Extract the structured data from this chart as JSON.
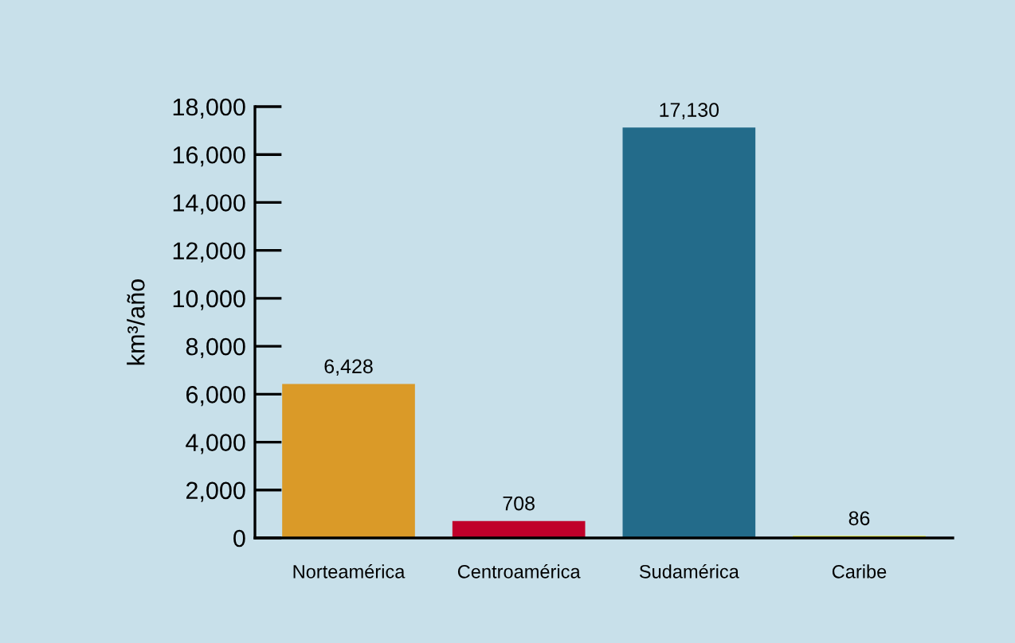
{
  "chart_data": {
    "type": "bar",
    "ylabel": "km³/año",
    "categories": [
      "Norteamérica",
      "Centroamérica",
      "Sudamérica",
      "Caribe"
    ],
    "values": [
      6428,
      708,
      17130,
      86
    ],
    "colors": [
      "#da9a28",
      "#c0002a",
      "#236b8a",
      "#f5f012"
    ],
    "value_labels": [
      "6,428",
      "708",
      "17,130",
      "86"
    ],
    "ylim": [
      0,
      18000
    ],
    "yticks": [
      {
        "value": 0,
        "label": "0"
      },
      {
        "value": 2000,
        "label": "2,000"
      },
      {
        "value": 4000,
        "label": "4,000"
      },
      {
        "value": 6000,
        "label": "6,000"
      },
      {
        "value": 8000,
        "label": "8,000"
      },
      {
        "value": 10000,
        "label": "10,000"
      },
      {
        "value": 12000,
        "label": "12,000"
      },
      {
        "value": 14000,
        "label": "14,000"
      },
      {
        "value": 16000,
        "label": "16,000"
      },
      {
        "value": 18000,
        "label": "18,000"
      }
    ],
    "grid": false,
    "legend": false
  }
}
